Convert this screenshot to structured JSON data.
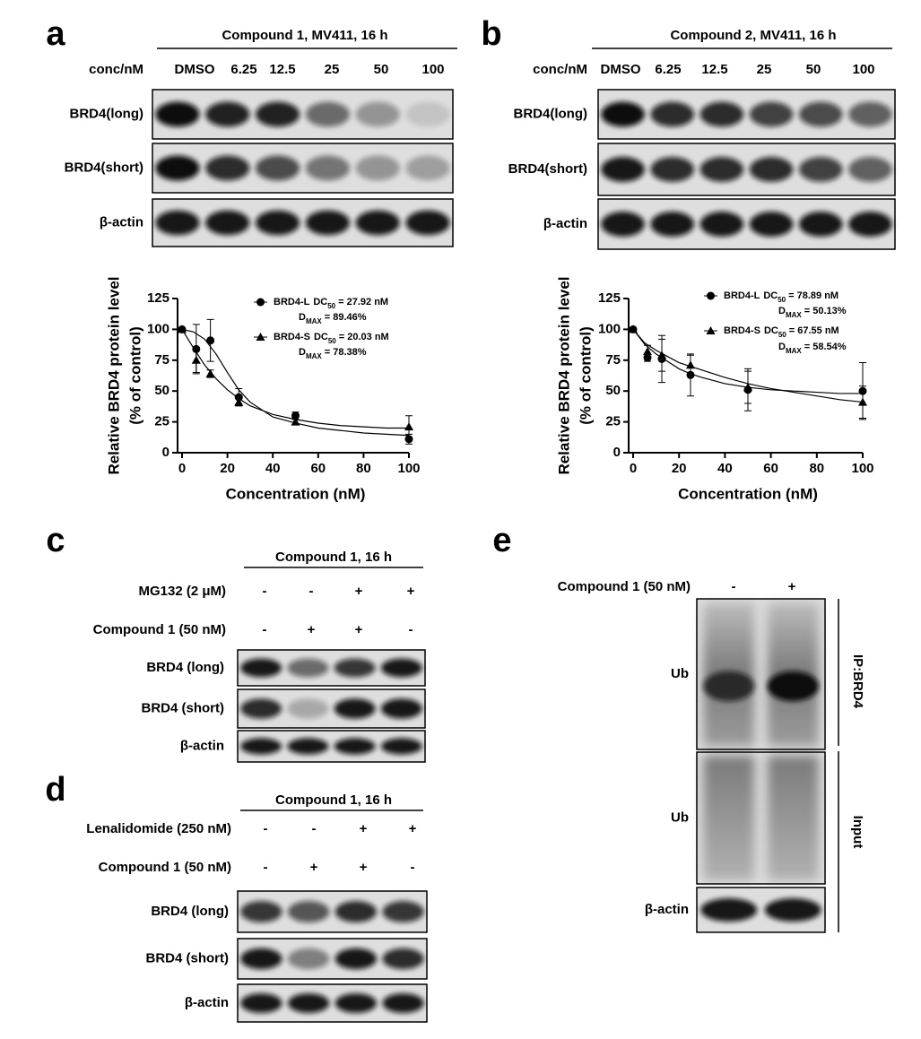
{
  "panel_a": {
    "letter": "a",
    "header": "Compound 1, MV411, 16 h",
    "lane_title": "conc/nM",
    "lanes": [
      "DMSO",
      "6.25",
      "12.5",
      "25",
      "50",
      "100"
    ],
    "rows": [
      "BRD4(long)",
      "BRD4(short)",
      "β-actin"
    ]
  },
  "panel_b": {
    "letter": "b",
    "header": "Compound 2, MV411, 16 h",
    "lane_title": "conc/nM",
    "lanes": [
      "DMSO",
      "6.25",
      "12.5",
      "25",
      "50",
      "100"
    ],
    "rows": [
      "BRD4(long)",
      "BRD4(short)",
      "β-actin"
    ]
  },
  "panel_c": {
    "letter": "c",
    "header": "Compound 1, 16 h",
    "conditions": [
      {
        "name": "MG132 (2 μM)",
        "signs": [
          "-",
          "-",
          "+",
          "+"
        ]
      },
      {
        "name": "Compound 1 (50 nM)",
        "signs": [
          "-",
          "+",
          "+",
          "-"
        ]
      }
    ],
    "rows": [
      "BRD4 (long)",
      "BRD4 (short)",
      "β-actin"
    ]
  },
  "panel_d": {
    "letter": "d",
    "header": "Compound 1, 16 h",
    "conditions": [
      {
        "name": "Lenalidomide (250 nM)",
        "signs": [
          "-",
          "-",
          "+",
          "+"
        ]
      },
      {
        "name": "Compound 1 (50 nM)",
        "signs": [
          "-",
          "+",
          "+",
          "-"
        ]
      }
    ],
    "rows": [
      "BRD4 (long)",
      "BRD4 (short)",
      "β-actin"
    ]
  },
  "panel_e": {
    "letter": "e",
    "conditions": [
      {
        "name": "Compound 1 (50 nM)",
        "signs": [
          "-",
          "+"
        ]
      }
    ],
    "rows": [
      "Ub",
      "Ub",
      "β-actin"
    ],
    "groups": [
      "IP:BRD4",
      "Input"
    ]
  },
  "chart_data": [
    {
      "type": "line",
      "x": [
        0,
        6.25,
        12.5,
        25,
        50,
        100
      ],
      "xlim": [
        0,
        100
      ],
      "xticks": [
        0,
        20,
        40,
        60,
        80,
        100
      ],
      "ylim": [
        0,
        125
      ],
      "yticks": [
        0,
        25,
        50,
        75,
        100,
        125
      ],
      "xlabel": "Concentration (nM)",
      "ylabel": [
        "Relative BRD4 protein level",
        "(% of control)"
      ],
      "series": [
        {
          "name": "BRD4-L",
          "marker": "circle",
          "color": "#000000",
          "values": [
            100,
            84,
            91,
            45,
            30,
            11
          ],
          "errors": [
            0,
            20,
            17,
            7,
            3,
            4
          ],
          "fit_x": [
            0,
            5,
            10,
            15,
            20,
            25,
            30,
            40,
            50,
            60,
            70,
            80,
            90,
            100
          ],
          "fit_values": [
            100,
            98,
            92,
            80,
            65,
            51,
            41,
            29,
            24,
            20,
            18,
            16,
            15,
            14
          ],
          "dc50": [
            "DC",
            "50",
            "= 27.92 nM"
          ],
          "dmax": [
            "D",
            "MAX",
            "= 89.46%"
          ]
        },
        {
          "name": "BRD4-S",
          "marker": "triangle",
          "color": "#000000",
          "values": [
            100,
            75,
            64,
            41,
            25,
            21
          ],
          "errors": [
            0,
            10,
            3,
            3,
            2,
            9
          ],
          "fit_x": [
            0,
            5,
            10,
            15,
            20,
            25,
            30,
            40,
            50,
            60,
            70,
            80,
            90,
            100
          ],
          "fit_values": [
            100,
            85,
            71,
            60,
            51,
            44,
            38,
            31,
            27,
            24,
            22,
            21,
            20,
            20
          ],
          "dc50": [
            "DC",
            "50",
            "= 20.03 nM"
          ],
          "dmax": [
            "D",
            "MAX",
            "= 78.38%"
          ]
        }
      ]
    },
    {
      "type": "line",
      "x": [
        0,
        6.25,
        12.5,
        25,
        50,
        100
      ],
      "xlim": [
        0,
        100
      ],
      "xticks": [
        0,
        20,
        40,
        60,
        80,
        100
      ],
      "ylim": [
        0,
        125
      ],
      "yticks": [
        0,
        25,
        50,
        75,
        100,
        125
      ],
      "xlabel": "Concentration (nM)",
      "ylabel": [
        "Relative BRD4 protein level",
        "(% of control)"
      ],
      "series": [
        {
          "name": "BRD4-L",
          "marker": "circle",
          "color": "#000000",
          "values": [
            100,
            77,
            76,
            63,
            51,
            50
          ],
          "errors": [
            0,
            3,
            19,
            17,
            17,
            23
          ],
          "fit_x": [
            0,
            5,
            10,
            15,
            20,
            25,
            30,
            40,
            50,
            60,
            70,
            80,
            90,
            100
          ],
          "fit_values": [
            100,
            88,
            80,
            74,
            68,
            64,
            61,
            56,
            53,
            51,
            50,
            49,
            48,
            48
          ],
          "dc50": [
            "DC",
            "50",
            "= 78.89 nM"
          ],
          "dmax": [
            "D",
            "MAX",
            "= 50.13%"
          ]
        },
        {
          "name": "BRD4-S",
          "marker": "triangle",
          "color": "#000000",
          "values": [
            100,
            82,
            79,
            71,
            53,
            41
          ],
          "errors": [
            0,
            5,
            13,
            8,
            13,
            13
          ],
          "fit_x": [
            0,
            5,
            10,
            15,
            20,
            25,
            30,
            40,
            50,
            60,
            70,
            80,
            90,
            100
          ],
          "fit_values": [
            100,
            89,
            83,
            78,
            73,
            70,
            67,
            61,
            56,
            52,
            49,
            46,
            43,
            41
          ],
          "dc50": [
            "DC",
            "50",
            "= 67.55 nM"
          ],
          "dmax": [
            "D",
            "MAX",
            "= 58.54%"
          ]
        }
      ]
    }
  ]
}
